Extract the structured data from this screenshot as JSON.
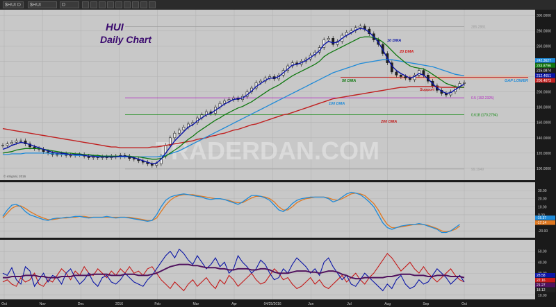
{
  "toolbar": {
    "symbol": "$HUI D",
    "symbol2": "$HUI",
    "interval": "D"
  },
  "chart_data": [
    {
      "type": "line",
      "title": "HUI",
      "subtitle": "Daily Chart",
      "watermark": "TRADERDAN.COM",
      "copyright": "© eSignal, 2016",
      "x_ticks": [
        "Oct",
        "Nov",
        "Dec",
        "2016",
        "Feb",
        "Mar",
        "Apr",
        "04/25/2016",
        "Jun",
        "Jul",
        "Aug",
        "Sep",
        "Oct"
      ],
      "y_ticks": [
        "300.0000",
        "280.0000",
        "260.0000",
        "240.0000",
        "220.0000",
        "200.0000",
        "180.0000",
        "160.0000",
        "140.0000",
        "120.0000",
        "100.0000"
      ],
      "ylim": [
        90,
        302
      ],
      "price_close": [
        130,
        132,
        134,
        136,
        136,
        132,
        128,
        126,
        125,
        122,
        120,
        118,
        118,
        119,
        117,
        117,
        118,
        118,
        116,
        114,
        115,
        114,
        115,
        114,
        116,
        115,
        117,
        116,
        113,
        112,
        110,
        108,
        106,
        104,
        106,
        116,
        130,
        140,
        146,
        150,
        154,
        158,
        160,
        166,
        170,
        174,
        172,
        180,
        185,
        188,
        190,
        192,
        190,
        194,
        200,
        205,
        212,
        214,
        218,
        220,
        217,
        222,
        228,
        234,
        238,
        236,
        240,
        243,
        248,
        252,
        258,
        268,
        270,
        262,
        266,
        274,
        278,
        280,
        284,
        286,
        282,
        276,
        268,
        262,
        250,
        238,
        226,
        222,
        220,
        218,
        216,
        222,
        228,
        222,
        214,
        208,
        202,
        198,
        196,
        200,
        206,
        211,
        212
      ],
      "ma10": [
        125,
        127,
        130,
        132,
        134,
        133,
        131,
        129,
        127,
        125,
        123,
        121,
        120,
        120,
        119,
        118,
        118,
        118,
        117,
        116,
        116,
        115,
        115,
        115,
        115,
        115,
        116,
        116,
        115,
        114,
        112,
        110,
        108,
        106,
        107,
        112,
        120,
        128,
        136,
        142,
        148,
        154,
        157,
        162,
        166,
        170,
        172,
        176,
        180,
        184,
        187,
        190,
        191,
        192,
        196,
        201,
        207,
        211,
        215,
        218,
        218,
        220,
        225,
        230,
        235,
        236,
        238,
        241,
        245,
        249,
        254,
        262,
        266,
        264,
        265,
        270,
        274,
        277,
        281,
        283,
        282,
        278,
        272,
        265,
        255,
        244,
        234,
        228,
        224,
        221,
        218,
        220,
        224,
        222,
        217,
        211,
        205,
        201,
        198,
        199,
        203,
        207,
        210
      ],
      "ma20": [
        120,
        121,
        122,
        124,
        125,
        126,
        126,
        126,
        126,
        125,
        124,
        123,
        122,
        121,
        120,
        120,
        119,
        119,
        118,
        118,
        117,
        117,
        116,
        116,
        116,
        116,
        116,
        116,
        116,
        115,
        115,
        114,
        113,
        112,
        112,
        113,
        116,
        120,
        124,
        128,
        133,
        138,
        142,
        147,
        151,
        155,
        159,
        163,
        166,
        170,
        173,
        176,
        179,
        181,
        184,
        187,
        191,
        195,
        199,
        203,
        206,
        209,
        213,
        217,
        221,
        224,
        227,
        230,
        233,
        236,
        240,
        246,
        250,
        253,
        256,
        259,
        262,
        265,
        268,
        271,
        272,
        272,
        271,
        269,
        265,
        260,
        254,
        248,
        243,
        238,
        234,
        232,
        231,
        230,
        227,
        223,
        219,
        215,
        211,
        209,
        207,
        206,
        206
      ],
      "ma50": [
        118,
        118,
        119,
        119,
        119,
        120,
        120,
        120,
        120,
        120,
        120,
        119,
        119,
        118,
        118,
        118,
        117,
        117,
        117,
        116,
        116,
        116,
        116,
        116,
        116,
        115,
        115,
        115,
        115,
        115,
        115,
        115,
        115,
        115,
        115,
        116,
        117,
        119,
        121,
        123,
        126,
        129,
        132,
        135,
        138,
        141,
        144,
        147,
        150,
        153,
        156,
        159,
        162,
        165,
        168,
        171,
        174,
        177,
        180,
        183,
        186,
        189,
        192,
        195,
        198,
        201,
        204,
        207,
        210,
        213,
        216,
        219,
        222,
        225,
        227,
        229,
        231,
        233,
        235,
        237,
        238,
        239,
        240,
        241,
        242,
        242,
        242,
        241,
        240,
        239,
        238,
        237,
        236,
        235,
        234,
        233,
        231,
        229,
        227,
        225,
        223,
        222,
        221
      ],
      "ma200": [
        152,
        151,
        150,
        149,
        148,
        147,
        146,
        145,
        144,
        143,
        142,
        141,
        140,
        139,
        138,
        137,
        136,
        135,
        134,
        133,
        132,
        131,
        130,
        129,
        128,
        128,
        127,
        127,
        127,
        127,
        127,
        127,
        127,
        128,
        128,
        129,
        130,
        131,
        132,
        133,
        134,
        135,
        136,
        138,
        139,
        140,
        142,
        143,
        145,
        146,
        148,
        150,
        151,
        153,
        155,
        157,
        158,
        160,
        162,
        164,
        166,
        168,
        170,
        171,
        173,
        175,
        177,
        179,
        181,
        183,
        185,
        187,
        189,
        191,
        192,
        193,
        194,
        195,
        196,
        197,
        198,
        199,
        200,
        201,
        202,
        203,
        204,
        205,
        206,
        206,
        207,
        207,
        207,
        207,
        207,
        207,
        207,
        206,
        206,
        206,
        206,
        206,
        206
      ],
      "h_lines": [
        {
          "label": "285.2881",
          "value": 285.2881,
          "color": "#9e9e9e"
        },
        {
          "label": "0.5 (192.2325)",
          "value": 192.2325,
          "color": "#b020c0"
        },
        {
          "label": "0.618 (170.2794)",
          "value": 170.2794,
          "color": "#138a13"
        },
        {
          "label": "99.1949",
          "value": 99.1949,
          "color": "#9e9e9e"
        }
      ],
      "annotations": [
        {
          "text": "10 DMA",
          "color": "#0a14a6"
        },
        {
          "text": "20 DMA",
          "color": "#d21a1a"
        },
        {
          "text": "50 DMA",
          "color": "#107810"
        },
        {
          "text": "100 DMA",
          "color": "#1e8ad8"
        },
        {
          "text": "200 DMA",
          "color": "#c02020"
        },
        {
          "text": "Support",
          "color": "#c02020"
        },
        {
          "text": "GAP LOWER",
          "color": "#1e8ad8"
        }
      ],
      "price_tags": [
        {
          "label": "242.3627",
          "color": "#1e8ad8"
        },
        {
          "label": "233.8796",
          "color": "#107810"
        },
        {
          "label": "215.0874",
          "color": "#1f1f1f"
        },
        {
          "label": "212.4651",
          "color": "#0a14a6"
        },
        {
          "label": "206.4073",
          "color": "#c02020"
        }
      ],
      "gap_zone": [
        216,
        222
      ],
      "support_level": 219,
      "colors": {
        "ma10": "#0a14a6",
        "ma20": "#d21a1a",
        "ma50": "#107810",
        "ma200": "#c02020",
        "ma100": "#1e8ad8",
        "price": "#1f1f1f"
      }
    },
    {
      "type": "line",
      "y_ticks": [
        "30.00",
        "20.00",
        "10.00",
        "0.00",
        "-10.00",
        "-20.00"
      ],
      "ylim": [
        -25,
        37
      ],
      "blue": [
        -2,
        6,
        12,
        13,
        10,
        4,
        0,
        -2,
        -4,
        -6,
        -7,
        -5,
        -4,
        -4,
        -3,
        -3,
        -2,
        -2,
        -3,
        -4,
        -3,
        -3,
        -3,
        -2,
        -3,
        -4,
        -3,
        -3,
        -4,
        -5,
        -6,
        -7,
        -8,
        -7,
        0,
        10,
        18,
        22,
        24,
        25,
        26,
        25,
        24,
        23,
        22,
        20,
        19,
        20,
        20,
        19,
        17,
        15,
        13,
        16,
        20,
        24,
        24,
        23,
        21,
        18,
        12,
        6,
        4,
        8,
        14,
        18,
        20,
        21,
        22,
        22,
        22,
        22,
        20,
        16,
        18,
        22,
        26,
        28,
        27,
        25,
        21,
        16,
        10,
        0,
        -10,
        -16,
        -18,
        -16,
        -14,
        -13,
        -12,
        -12,
        -11,
        -12,
        -14,
        -16,
        -18,
        -22,
        -22,
        -20,
        -16,
        -12
      ],
      "orange": [
        -4,
        2,
        8,
        11,
        11,
        8,
        4,
        1,
        -2,
        -4,
        -6,
        -6,
        -5,
        -4,
        -4,
        -3,
        -3,
        -2,
        -2,
        -3,
        -3,
        -3,
        -3,
        -3,
        -3,
        -3,
        -3,
        -3,
        -3,
        -4,
        -5,
        -6,
        -7,
        -7,
        -4,
        4,
        12,
        18,
        22,
        24,
        25,
        25,
        25,
        24,
        23,
        22,
        21,
        20,
        20,
        19,
        18,
        16,
        15,
        15,
        18,
        21,
        23,
        23,
        22,
        20,
        16,
        10,
        6,
        6,
        10,
        15,
        18,
        20,
        21,
        22,
        22,
        22,
        21,
        19,
        18,
        20,
        23,
        26,
        27,
        26,
        24,
        19,
        14,
        6,
        -4,
        -12,
        -16,
        -16,
        -15,
        -14,
        -13,
        -12,
        -12,
        -12,
        -13,
        -15,
        -17,
        -20,
        -21,
        -20,
        -18,
        -14
      ],
      "tags": [
        {
          "label": "-15.37",
          "color": "#1e8ad8"
        },
        {
          "label": "-17.14",
          "color": "#e07820"
        }
      ]
    },
    {
      "type": "line",
      "y_ticks": [
        "50.00",
        "40.00",
        "30.00",
        "20.00",
        "10.00"
      ],
      "ylim": [
        8,
        58
      ],
      "navy": [
        30,
        28,
        35,
        24,
        20,
        36,
        32,
        18,
        24,
        30,
        22,
        28,
        26,
        20,
        30,
        34,
        26,
        20,
        24,
        30,
        22,
        18,
        26,
        28,
        22,
        20,
        24,
        30,
        26,
        22,
        20,
        18,
        24,
        28,
        34,
        40,
        46,
        50,
        44,
        52,
        48,
        42,
        38,
        46,
        40,
        34,
        38,
        44,
        36,
        40,
        30,
        34,
        46,
        40,
        36,
        30,
        34,
        42,
        38,
        30,
        24,
        26,
        34,
        30,
        38,
        44,
        40,
        36,
        30,
        34,
        28,
        40,
        44,
        36,
        30,
        24,
        28,
        20,
        18,
        24,
        30,
        26,
        22,
        18,
        14,
        20,
        16,
        24,
        28,
        20,
        16,
        18,
        24,
        20,
        22,
        28,
        34,
        30,
        26,
        20,
        24,
        28,
        22
      ],
      "red": [
        22,
        24,
        20,
        18,
        26,
        22,
        24,
        30,
        20,
        18,
        24,
        22,
        28,
        34,
        30,
        24,
        32,
        28,
        36,
        30,
        28,
        34,
        30,
        26,
        32,
        28,
        34,
        30,
        36,
        30,
        32,
        28,
        34,
        36,
        30,
        24,
        20,
        16,
        22,
        18,
        14,
        20,
        24,
        18,
        22,
        26,
        20,
        16,
        24,
        20,
        28,
        24,
        18,
        22,
        26,
        30,
        24,
        20,
        22,
        28,
        34,
        30,
        24,
        26,
        20,
        16,
        18,
        22,
        26,
        20,
        24,
        18,
        16,
        20,
        24,
        28,
        22,
        26,
        30,
        24,
        20,
        26,
        30,
        36,
        42,
        48,
        44,
        38,
        32,
        36,
        40,
        34,
        30,
        36,
        30,
        26,
        22,
        26,
        30,
        34,
        28,
        24,
        22
      ],
      "thick": [
        26,
        26,
        27,
        27,
        27,
        28,
        28,
        28,
        27,
        27,
        26,
        26,
        26,
        27,
        27,
        27,
        28,
        28,
        28,
        28,
        29,
        29,
        29,
        29,
        28,
        28,
        28,
        29,
        29,
        29,
        28,
        28,
        28,
        29,
        30,
        32,
        34,
        36,
        37,
        38,
        38,
        38,
        37,
        37,
        36,
        35,
        35,
        35,
        34,
        34,
        33,
        33,
        34,
        34,
        34,
        33,
        33,
        34,
        34,
        33,
        31,
        30,
        30,
        30,
        31,
        32,
        32,
        32,
        31,
        31,
        30,
        31,
        32,
        32,
        31,
        29,
        28,
        26,
        25,
        25,
        26,
        26,
        26,
        26,
        26,
        27,
        27,
        28,
        29,
        29,
        29,
        28,
        28,
        28,
        27,
        27,
        28,
        28,
        28,
        27,
        27,
        27,
        26
      ],
      "tags": [
        {
          "label": "28.58",
          "color": "#0a14a6"
        },
        {
          "label": "22.16",
          "color": "#c41a1a"
        },
        {
          "label": "21.27",
          "color": "#50125e"
        },
        {
          "label": "18.12",
          "color": "#222222"
        }
      ]
    }
  ]
}
